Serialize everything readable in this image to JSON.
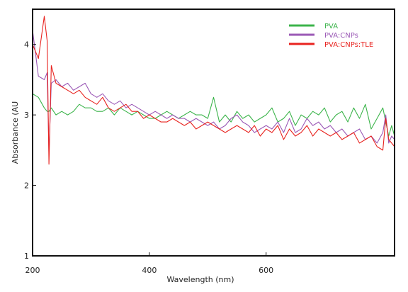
{
  "chart_data": {
    "type": "line",
    "title": "",
    "xlabel": "Wavelength (nm)",
    "ylabel": "Absorbance (AU",
    "xlim": [
      200,
      820
    ],
    "ylim": [
      1,
      4.5
    ],
    "x_ticks": [
      200,
      400,
      600
    ],
    "x_tick_labels": [
      "200",
      "400",
      "600"
    ],
    "y_ticks": [
      1,
      2,
      3,
      4
    ],
    "y_tick_labels": [
      "1",
      "2",
      "3",
      "4"
    ],
    "grid": false,
    "legend_position": "top-right",
    "x": [
      200,
      210,
      220,
      225,
      228,
      232,
      240,
      250,
      260,
      270,
      280,
      290,
      300,
      310,
      320,
      330,
      340,
      350,
      360,
      370,
      380,
      390,
      400,
      410,
      420,
      430,
      440,
      450,
      460,
      470,
      480,
      490,
      500,
      510,
      520,
      530,
      540,
      550,
      560,
      570,
      580,
      590,
      600,
      610,
      620,
      630,
      640,
      650,
      660,
      670,
      680,
      690,
      700,
      710,
      720,
      730,
      740,
      750,
      760,
      770,
      780,
      790,
      800,
      805,
      810,
      815,
      820
    ],
    "series": [
      {
        "name": "PVA",
        "color": "#3cb44b",
        "values": [
          3.3,
          3.25,
          3.1,
          3.05,
          3.05,
          3.1,
          3.0,
          3.05,
          3.0,
          3.05,
          3.15,
          3.1,
          3.1,
          3.05,
          3.05,
          3.1,
          3.0,
          3.1,
          3.05,
          3.0,
          3.05,
          3.0,
          2.95,
          2.95,
          3.0,
          3.05,
          3.0,
          2.95,
          3.0,
          3.05,
          3.0,
          3.0,
          2.95,
          3.25,
          2.9,
          3.0,
          2.9,
          3.05,
          2.95,
          3.0,
          2.9,
          2.95,
          3.0,
          3.1,
          2.9,
          2.95,
          3.05,
          2.85,
          3.0,
          2.95,
          3.05,
          3.0,
          3.1,
          2.9,
          3.0,
          3.05,
          2.9,
          3.1,
          2.95,
          3.15,
          2.8,
          2.95,
          3.1,
          2.9,
          2.7,
          2.85,
          2.7
        ]
      },
      {
        "name": "PVA:CNPs",
        "color": "#9b59b6",
        "values": [
          4.2,
          3.55,
          3.5,
          3.6,
          2.45,
          3.45,
          3.5,
          3.4,
          3.45,
          3.35,
          3.4,
          3.45,
          3.3,
          3.25,
          3.3,
          3.2,
          3.15,
          3.2,
          3.1,
          3.15,
          3.1,
          3.05,
          3.0,
          3.05,
          3.0,
          2.95,
          3.0,
          2.95,
          2.95,
          2.9,
          2.95,
          2.9,
          2.85,
          2.9,
          2.8,
          2.85,
          2.95,
          3.0,
          2.9,
          2.85,
          2.75,
          2.8,
          2.85,
          2.8,
          2.9,
          2.75,
          2.95,
          2.75,
          2.8,
          2.95,
          2.85,
          2.9,
          2.8,
          2.85,
          2.75,
          2.8,
          2.7,
          2.75,
          2.8,
          2.65,
          2.7,
          2.6,
          2.75,
          3.0,
          2.6,
          2.7,
          2.65
        ]
      },
      {
        "name": "PVA:CNPs:TLE",
        "color": "#e8231f",
        "values": [
          4.0,
          3.8,
          4.4,
          4.05,
          2.3,
          3.7,
          3.45,
          3.4,
          3.35,
          3.3,
          3.35,
          3.25,
          3.2,
          3.15,
          3.25,
          3.1,
          3.05,
          3.1,
          3.15,
          3.05,
          3.05,
          2.95,
          3.0,
          2.95,
          2.9,
          2.9,
          2.95,
          2.9,
          2.85,
          2.9,
          2.8,
          2.85,
          2.9,
          2.85,
          2.8,
          2.75,
          2.8,
          2.85,
          2.8,
          2.75,
          2.85,
          2.7,
          2.8,
          2.75,
          2.85,
          2.65,
          2.8,
          2.7,
          2.75,
          2.85,
          2.7,
          2.8,
          2.75,
          2.7,
          2.75,
          2.65,
          2.7,
          2.75,
          2.6,
          2.65,
          2.7,
          2.55,
          2.5,
          2.95,
          2.65,
          2.6,
          2.55
        ]
      }
    ]
  }
}
